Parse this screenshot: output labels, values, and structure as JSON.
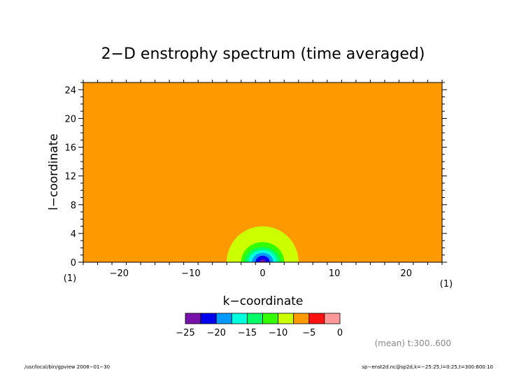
{
  "chart_data": {
    "type": "heatmap",
    "title": "2−D enstrophy spectrum (time averaged)",
    "xlabel": "k−coordinate",
    "ylabel": "l−coordinate",
    "x_unit": "(1)",
    "y_unit": "(1)",
    "xlim": [
      -25,
      25
    ],
    "ylim": [
      0,
      25
    ],
    "xticks": [
      -20,
      -10,
      0,
      10,
      20
    ],
    "xtick_labels": [
      "−20",
      "−10",
      "0",
      "10",
      "20"
    ],
    "yticks": [
      0,
      4,
      8,
      12,
      16,
      20,
      24
    ],
    "ytick_labels": [
      "0",
      "4",
      "8",
      "12",
      "16",
      "20",
      "24"
    ],
    "background_level": [
      -5,
      -2.5
    ],
    "contours": [
      {
        "level": [
          -7.5,
          -5
        ],
        "color": "#ccff00",
        "k_range": [
          -5,
          5
        ],
        "l_max": 5
      },
      {
        "level": [
          -10,
          -7.5
        ],
        "color": "#33ff00",
        "k_range": [
          -3,
          3
        ],
        "l_max": 2.8
      },
      {
        "level": [
          -12.5,
          -10
        ],
        "color": "#00ff66",
        "k_range": [
          -2.5,
          2.5
        ],
        "l_max": 2.1
      },
      {
        "level": [
          -15,
          -12.5
        ],
        "color": "#00ffdd",
        "k_range": [
          -2,
          2
        ],
        "l_max": 1.7
      },
      {
        "level": [
          -17.5,
          -15
        ],
        "color": "#0099ff",
        "k_range": [
          -1.5,
          1.5
        ],
        "l_max": 1.3
      },
      {
        "level": [
          -20,
          -17.5
        ],
        "color": "#0000ee",
        "k_range": [
          -1,
          1
        ],
        "l_max": 0.9
      },
      {
        "level": [
          -22.5,
          -20
        ],
        "color": "#7711aa",
        "k_range": [
          -0.4,
          0.4
        ],
        "l_max": 0.4
      }
    ],
    "colorbar": {
      "colors": [
        "#7711aa",
        "#0000ee",
        "#0099ff",
        "#00ffdd",
        "#00ff66",
        "#33ff00",
        "#ccff00",
        "#ff9900",
        "#ff1111",
        "#ff9999"
      ],
      "tick_labels": [
        "−25",
        "−20",
        "−15",
        "−10",
        "−5",
        "0"
      ]
    }
  },
  "annotations": {
    "mean_note": "(mean) t:300..600",
    "footer_left": "/usr/local/bin/gpview   2008−01−30",
    "footer_right": "sp−enst2d.nc@sp2d,k=−25:25,l=0:25,t=300:600:10"
  },
  "colors": {
    "background_fill": "#ff9900",
    "frame": "#000000"
  }
}
